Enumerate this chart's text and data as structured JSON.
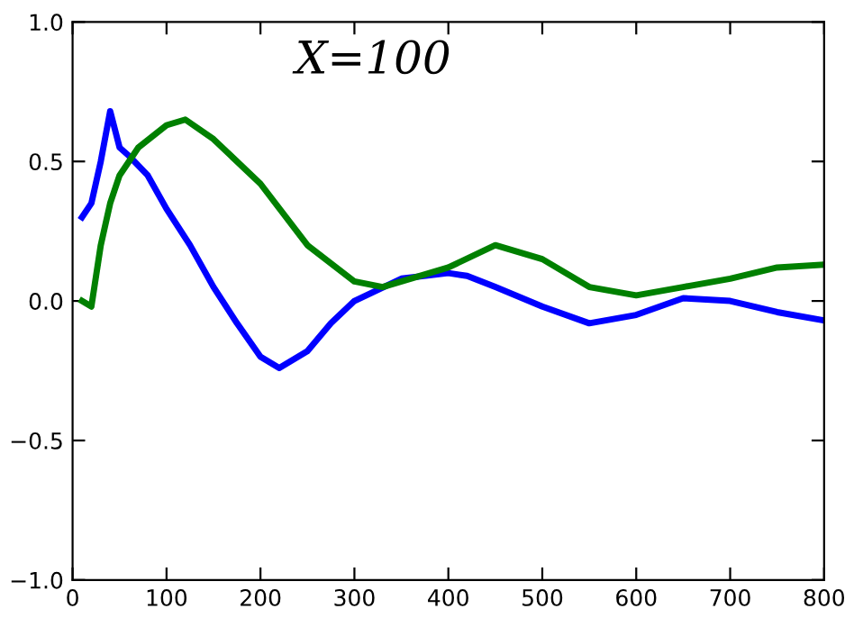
{
  "chart_data": {
    "type": "line",
    "title": "X=100",
    "xlim": [
      0,
      800
    ],
    "xticks": [
      0,
      100,
      200,
      300,
      400,
      500,
      600,
      700,
      800
    ],
    "ylim": [
      -1.0,
      1.0
    ],
    "yticks": [
      {
        "value": -1.0,
        "label": "−1.0"
      },
      {
        "value": -0.5,
        "label": "−0.5"
      },
      {
        "value": 0.0,
        "label": "0.0"
      },
      {
        "value": 0.5,
        "label": "0.5"
      },
      {
        "value": 1.0,
        "label": "1.0"
      }
    ],
    "series": [
      {
        "color": "#0000ff",
        "x": [
          10,
          20,
          30,
          40,
          50,
          60,
          80,
          100,
          125,
          150,
          175,
          200,
          220,
          250,
          275,
          300,
          350,
          400,
          420,
          450,
          500,
          550,
          600,
          650,
          700,
          750,
          800
        ],
        "values": [
          0.3,
          0.35,
          0.5,
          0.68,
          0.55,
          0.52,
          0.45,
          0.33,
          0.2,
          0.05,
          -0.08,
          -0.2,
          -0.24,
          -0.18,
          -0.08,
          0.0,
          0.08,
          0.1,
          0.09,
          0.05,
          -0.02,
          -0.08,
          -0.05,
          0.01,
          0.0,
          -0.04,
          -0.07
        ]
      },
      {
        "color": "#008000",
        "x": [
          10,
          20,
          30,
          40,
          50,
          70,
          100,
          120,
          150,
          200,
          250,
          300,
          330,
          400,
          450,
          500,
          550,
          600,
          650,
          700,
          750,
          800
        ],
        "values": [
          0.0,
          -0.02,
          0.2,
          0.35,
          0.45,
          0.55,
          0.63,
          0.65,
          0.58,
          0.42,
          0.2,
          0.07,
          0.05,
          0.12,
          0.2,
          0.15,
          0.05,
          0.02,
          0.05,
          0.08,
          0.12,
          0.13
        ]
      }
    ]
  }
}
